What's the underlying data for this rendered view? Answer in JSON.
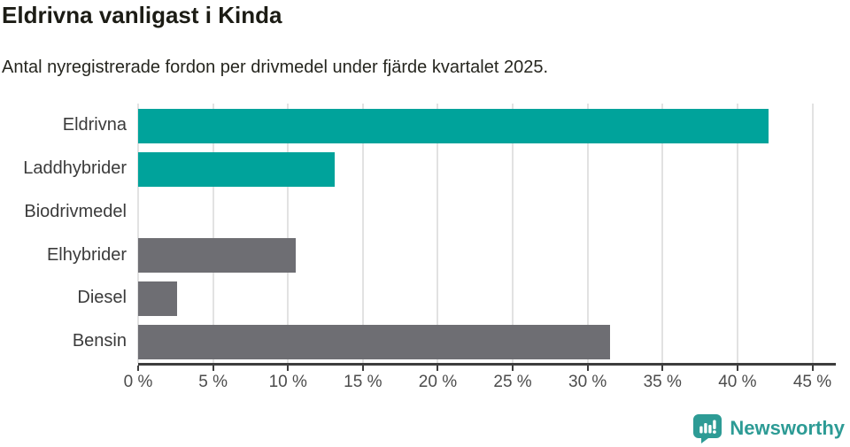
{
  "chart_data": {
    "type": "bar",
    "orientation": "horizontal",
    "title": "Eldrivna vanligast i Kinda",
    "subtitle": "Antal nyregistrerade fordon per drivmedel under fjärde kvartalet 2025.",
    "categories": [
      "Eldrivna",
      "Laddhybrider",
      "Biodrivmedel",
      "Elhybrider",
      "Diesel",
      "Bensin"
    ],
    "values": [
      42.1,
      13.1,
      0,
      10.5,
      2.6,
      31.5
    ],
    "unit": "%",
    "xlim": [
      0,
      45
    ],
    "xticks": [
      0,
      5,
      10,
      15,
      20,
      25,
      30,
      35,
      40,
      45
    ],
    "xtick_labels": [
      "0 %",
      "5 %",
      "10 %",
      "15 %",
      "20 %",
      "25 %",
      "30 %",
      "35 %",
      "40 %",
      "45 %"
    ],
    "bar_colors": [
      "#00a39b",
      "#00a39b",
      "#00a39b",
      "#6e6e73",
      "#6e6e73",
      "#6e6e73"
    ],
    "grid": true,
    "legend_position": "none"
  },
  "colors": {
    "teal": "#00a39b",
    "gray": "#6e6e73",
    "gridline": "#e2e2e2",
    "axis": "#3d3d3d",
    "title_text": "#1c1c15",
    "subtitle_text": "#26261f",
    "category_text": "#3b3b3b",
    "tick_text": "#4c4c4c",
    "logo": "#2d9b95"
  },
  "branding": {
    "logo_text": "Newsworthy",
    "logo_icon": "bar-chart-speech-bubble"
  }
}
